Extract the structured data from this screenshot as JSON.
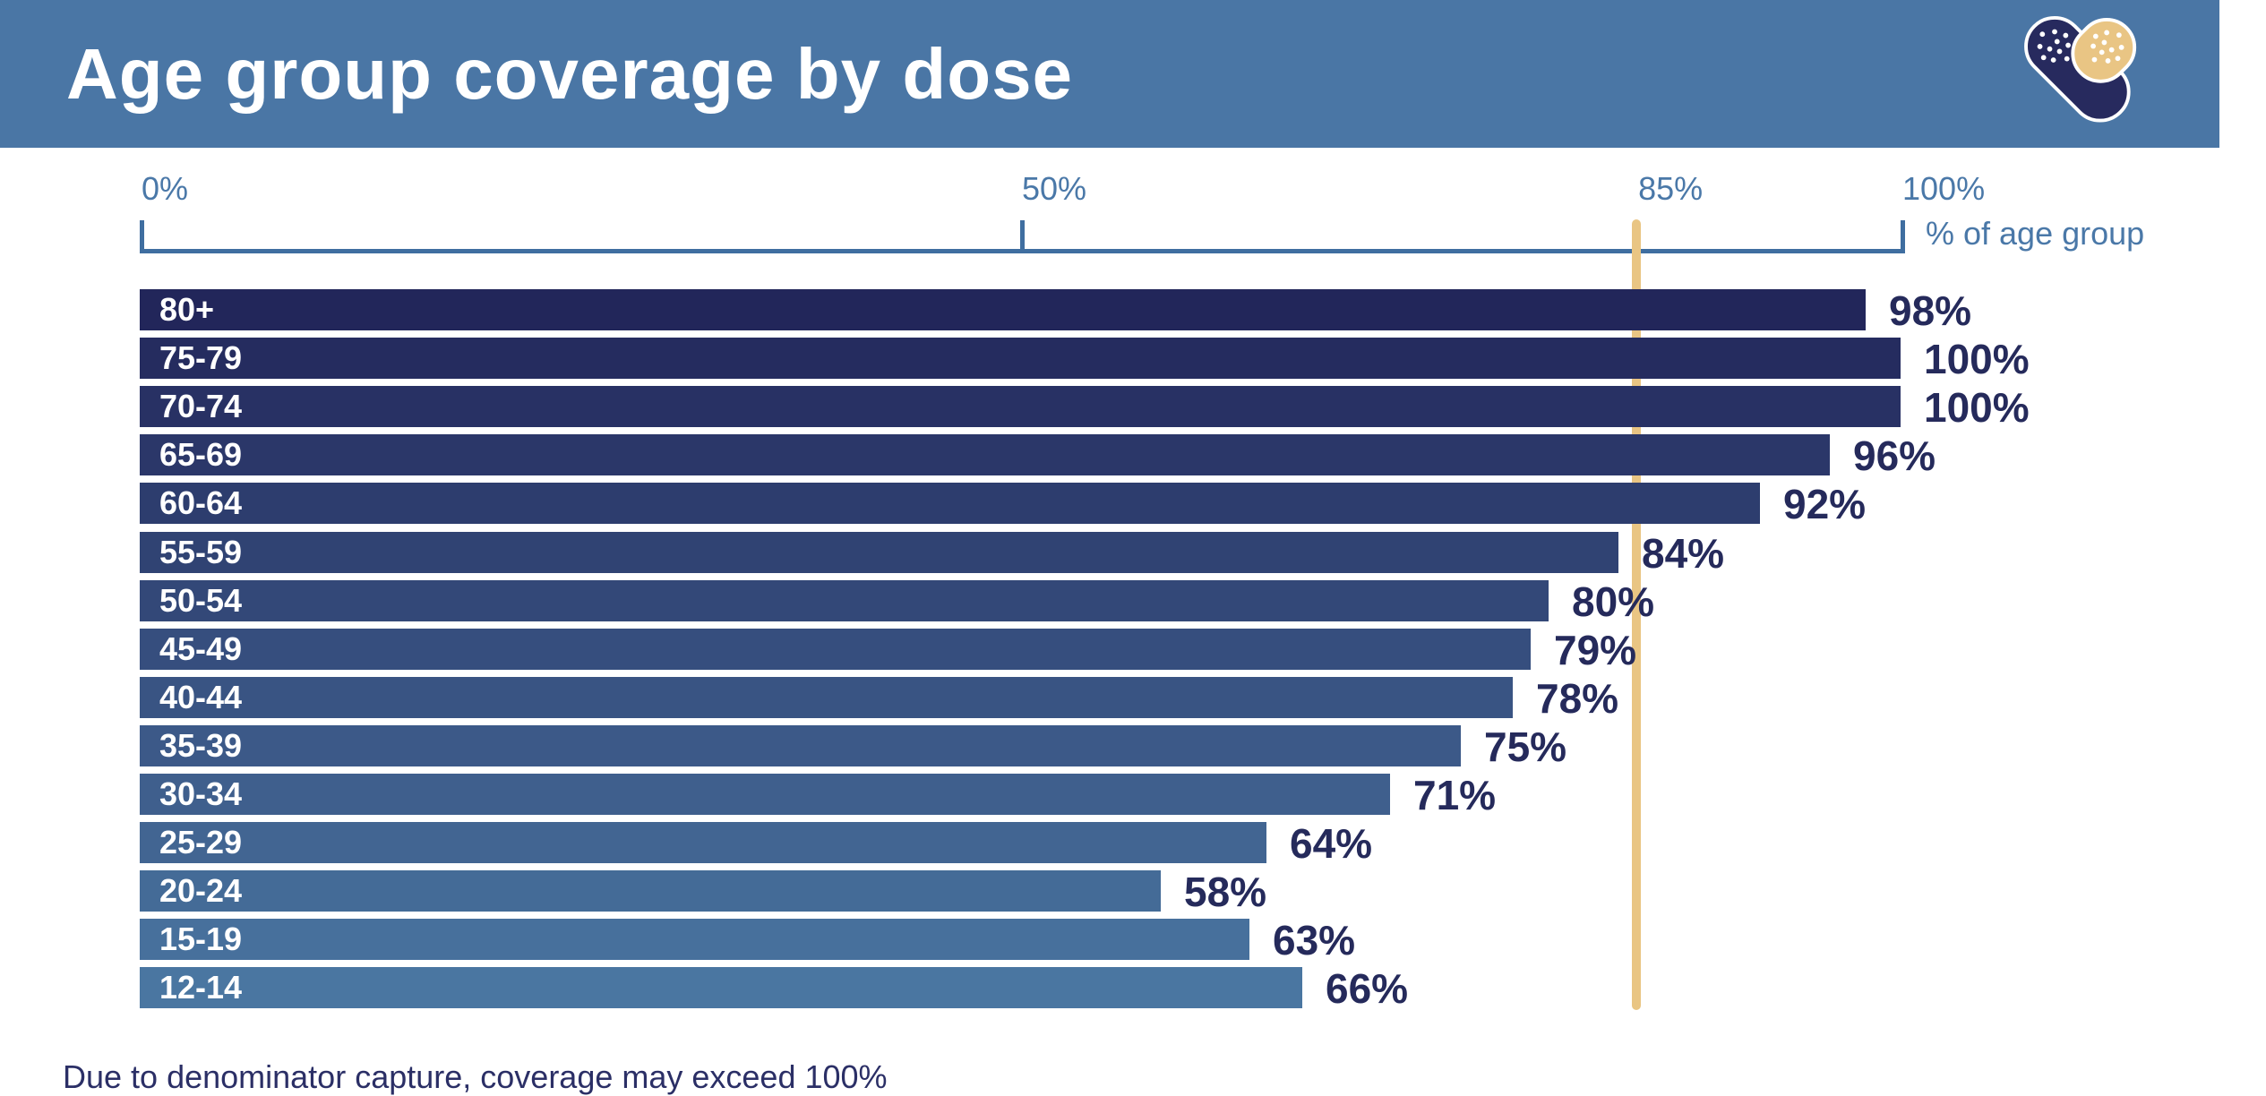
{
  "header": {
    "title": "Age group coverage by dose",
    "bg_color": "#4a76a5",
    "logo": {
      "name": "bandaid-heart-logo",
      "navy_color": "#272a5e",
      "tan_color": "#e9c584"
    }
  },
  "axis": {
    "unit_label": "% of age group",
    "line_color": "#3f6ea0",
    "label_color": "#4a78a8",
    "ticks": [
      {
        "label": "0%",
        "pct": 0,
        "has_mark": true
      },
      {
        "label": "50%",
        "pct": 50,
        "has_mark": true
      },
      {
        "label": "85%",
        "pct": 85,
        "has_mark": false
      },
      {
        "label": "100%",
        "pct": 100,
        "has_mark": true
      }
    ],
    "target_line": {
      "pct": 85,
      "color": "#e9c583"
    }
  },
  "chart_data": {
    "type": "bar",
    "orientation": "horizontal",
    "title": "Age group coverage by dose",
    "xlabel": "% of age group",
    "xlim": [
      0,
      100
    ],
    "x_ticks": [
      0,
      50,
      85,
      100
    ],
    "reference_line": {
      "value": 85,
      "color": "#e9c583"
    },
    "grid": false,
    "legend": false,
    "categories": [
      "80+",
      "75-79",
      "70-74",
      "65-69",
      "60-64",
      "55-59",
      "50-54",
      "45-49",
      "40-44",
      "35-39",
      "30-34",
      "25-29",
      "20-24",
      "15-19",
      "12-14"
    ],
    "values": [
      98,
      100,
      100,
      96,
      92,
      84,
      80,
      79,
      78,
      75,
      71,
      64,
      58,
      63,
      66
    ],
    "value_labels": [
      "98%",
      "100%",
      "100%",
      "96%",
      "92%",
      "84%",
      "80%",
      "79%",
      "78%",
      "75%",
      "71%",
      "64%",
      "58%",
      "63%",
      "66%"
    ],
    "bar_colors": [
      "#22265a",
      "#252c5f",
      "#283164",
      "#2b3769",
      "#2d3d6e",
      "#304373",
      "#334878",
      "#364e7e",
      "#395483",
      "#3c5988",
      "#3f5f8d",
      "#426592",
      "#446b97",
      "#47709c",
      "#4a76a1"
    ],
    "value_label_color": "#252a5b",
    "bar_text_color": "#ffffff"
  },
  "footer": {
    "note": "Due to denominator capture, coverage may exceed 100%"
  }
}
